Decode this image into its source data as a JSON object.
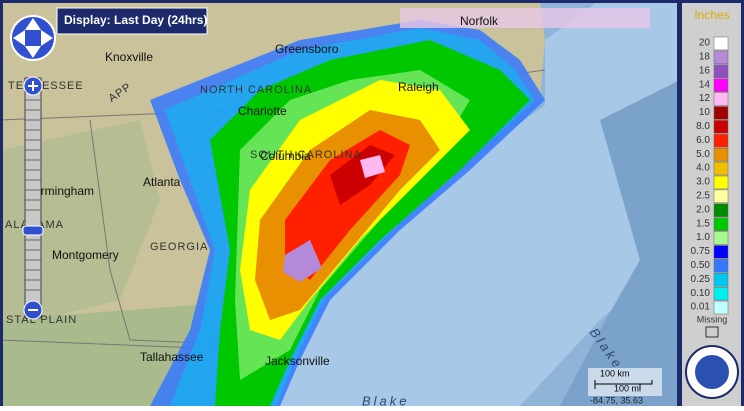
{
  "display": "Display: Last Day (24hrs)",
  "cities": [
    "Knoxville",
    "Greensboro",
    "Raleigh",
    "Norfolk",
    "Charlotte",
    "Columbia",
    "Atlanta",
    "Birmingham",
    "Montgomery",
    "Tallahassee",
    "Jacksonville"
  ],
  "regions": [
    "TENNESSEE",
    "NORTH CAROLINA",
    "SOUTH CAROLINA",
    "GEORGIA",
    "ALABAMA",
    "APP",
    "STAL PLAIN"
  ],
  "water_labels": [
    "Blake",
    "Blake"
  ],
  "legend": {
    "title": "Inches",
    "items": [
      {
        "label": "20",
        "color": "#ffffff"
      },
      {
        "label": "18",
        "color": "#b48ad8"
      },
      {
        "label": "16",
        "color": "#9050c0"
      },
      {
        "label": "14",
        "color": "#ff00ff"
      },
      {
        "label": "12",
        "color": "#ffb8f0"
      },
      {
        "label": "10",
        "color": "#a00000"
      },
      {
        "label": "8.0",
        "color": "#cc0000"
      },
      {
        "label": "6.0",
        "color": "#ff2000"
      },
      {
        "label": "5.0",
        "color": "#e89000"
      },
      {
        "label": "4.0",
        "color": "#f0c000"
      },
      {
        "label": "3.0",
        "color": "#ffff00"
      },
      {
        "label": "2.5",
        "color": "#ffff a0"
      },
      {
        "label": "2.0",
        "color": "#008c00"
      },
      {
        "label": "1.5",
        "color": "#00c800"
      },
      {
        "label": "1.0",
        "color": "#a8f890"
      },
      {
        "label": "0.75",
        "color": "#0000ff"
      },
      {
        "label": "0.50",
        "color": "#3478ff"
      },
      {
        "label": "0.25",
        "color": "#00c8f0"
      },
      {
        "label": "0.10",
        "color": "#00f0f0"
      },
      {
        "label": "0.01",
        "color": "#c0ffff"
      }
    ],
    "missing": "Missing"
  },
  "scale": {
    "km": "100 km",
    "mi": "100 mi"
  },
  "coordinates": "-84.75, 35.63"
}
